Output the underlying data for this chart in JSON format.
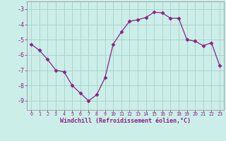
{
  "x": [
    0,
    1,
    2,
    3,
    4,
    5,
    6,
    7,
    8,
    9,
    10,
    11,
    12,
    13,
    14,
    15,
    16,
    17,
    18,
    19,
    20,
    21,
    22,
    23
  ],
  "y": [
    -5.3,
    -5.7,
    -6.3,
    -7.0,
    -7.1,
    -8.0,
    -8.5,
    -9.0,
    -8.6,
    -7.5,
    -5.3,
    -4.5,
    -3.8,
    -3.7,
    -3.55,
    -3.2,
    -3.25,
    -3.6,
    -3.6,
    -5.0,
    -5.1,
    -5.4,
    -5.2,
    -6.7
  ],
  "line_color": "#882288",
  "marker": "D",
  "marker_size": 2.5,
  "bg_color": "#cceee8",
  "grid_color": "#aad4ce",
  "xlabel": "Windchill (Refroidissement éolien,°C)",
  "xlabel_color": "#882288",
  "tick_color": "#882288",
  "ylabel_ticks": [
    -9,
    -8,
    -7,
    -6,
    -5,
    -4,
    -3
  ],
  "xlim": [
    -0.5,
    23.5
  ],
  "ylim": [
    -9.6,
    -2.5
  ]
}
